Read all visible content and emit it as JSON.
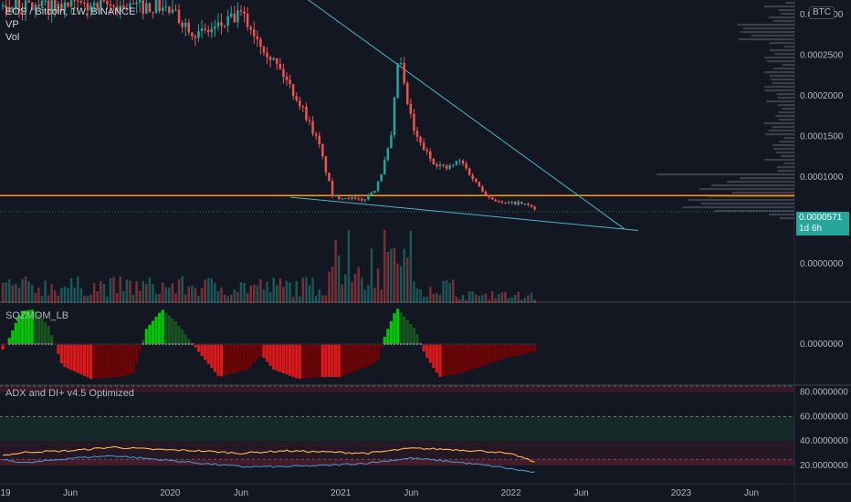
{
  "header": {
    "symbol_title": "EOS / Bitcoin, 1W, BINANCE",
    "indicator_vp": "VP",
    "indicator_vol": "Vol",
    "currency_badge": "BTC"
  },
  "price_tag": {
    "value": "0.0000571",
    "countdown": "1d 6h"
  },
  "panes": {
    "momentum_label": "SQZMOM_LB",
    "adx_label": "ADX and DI+ v4.5 Optimized"
  },
  "colors": {
    "background": "#131722",
    "candle_up": "#26a69a",
    "candle_down": "#ef5350",
    "support_line": "#ff9800",
    "trendline": "#4fb3c9",
    "momentum_bright_green": "#00e600",
    "momentum_dark_green": "#1b5e20",
    "momentum_bright_red": "#ff1a1a",
    "momentum_dark_red": "#7f0000",
    "adx_line": "#ffb74d",
    "di_line": "#4a90c8"
  },
  "chart_data": [
    {
      "type": "candlestick",
      "title": "EOS / Bitcoin, 1W, BINANCE",
      "y_axis_ticks": [
        "0.0003000",
        "0.0002500",
        "0.0002000",
        "0.0001500",
        "0.0001000"
      ],
      "x_axis_ticks": [
        "19",
        "Jun",
        "2020",
        "Jun",
        "2021",
        "Jun",
        "2022",
        "Jun",
        "2023",
        "Jun"
      ],
      "x_range": [
        "2019-01-01",
        "2023-09-01"
      ],
      "ylim": [
        4.8e-05,
        0.000318
      ],
      "close_points": [
        [
          "2019-12-15",
          0.00031
        ],
        [
          "2020-02-01",
          0.00029
        ],
        [
          "2020-03-01",
          0.000275
        ],
        [
          "2020-04-15",
          0.000285
        ],
        [
          "2020-06-01",
          0.0003
        ],
        [
          "2020-07-15",
          0.000265
        ],
        [
          "2020-09-01",
          0.000225
        ],
        [
          "2020-10-15",
          0.00018
        ],
        [
          "2020-11-15",
          0.00014
        ],
        [
          "2020-12-15",
          7.5e-05
        ],
        [
          "2021-01-15",
          7.5e-05
        ],
        [
          "2021-02-15",
          7e-05
        ],
        [
          "2021-03-15",
          8.5e-05
        ],
        [
          "2021-04-01",
          0.00011
        ],
        [
          "2021-04-20",
          0.00015
        ],
        [
          "2021-05-05",
          0.000255
        ],
        [
          "2021-05-20",
          0.0002
        ],
        [
          "2021-06-10",
          0.00015
        ],
        [
          "2021-07-15",
          0.00012
        ],
        [
          "2021-08-15",
          0.00011
        ],
        [
          "2021-09-15",
          0.00012
        ],
        [
          "2021-10-15",
          9.5e-05
        ],
        [
          "2021-11-15",
          7.5e-05
        ],
        [
          "2021-12-15",
          6.7e-05
        ],
        [
          "2022-01-15",
          6.8e-05
        ],
        [
          "2022-02-15",
          6.4e-05
        ],
        [
          "2022-02-25",
          5.71e-05
        ]
      ],
      "support_level": 7.7e-05,
      "trendlines": [
        {
          "from": [
            "2020-08-20",
            0.000345
          ],
          "to": [
            "2022-09-01",
            3.6e-05
          ]
        },
        {
          "from": [
            "2020-09-15",
            7.5e-05
          ],
          "to": [
            "2022-10-01",
            3.4e-05
          ]
        }
      ],
      "last_price": 5.71e-05
    },
    {
      "type": "bar",
      "title": "Vol",
      "y_axis_ticks": [
        "0.0000000"
      ],
      "x_range": [
        "2019-01-01",
        "2023-09-01"
      ],
      "high_volume_points": [
        [
          "2021-01-01",
          0.9
        ],
        [
          "2021-01-15",
          0.75
        ],
        [
          "2021-02-15",
          0.95
        ],
        [
          "2021-05-10",
          1.0
        ],
        [
          "2021-04-20",
          0.8
        ]
      ]
    },
    {
      "type": "bar",
      "title": "SQZMOM_LB",
      "y_axis_ticks": [
        "0.0000000"
      ],
      "x_range": [
        "2019-01-01",
        "2023-09-01"
      ],
      "momentum_points": [
        [
          "2019-01-10",
          -0.15
        ],
        [
          "2019-02-15",
          0.9
        ],
        [
          "2019-03-15",
          0.95
        ],
        [
          "2019-04-15",
          0.5
        ],
        [
          "2019-05-15",
          -0.6
        ],
        [
          "2019-07-15",
          -0.95
        ],
        [
          "2019-09-15",
          -0.9
        ],
        [
          "2019-10-15",
          -0.8
        ],
        [
          "2019-11-10",
          0.4
        ],
        [
          "2019-12-15",
          0.95
        ],
        [
          "2020-01-15",
          0.6
        ],
        [
          "2020-03-01",
          -0.2
        ],
        [
          "2020-04-15",
          -0.9
        ],
        [
          "2020-06-15",
          -0.7
        ],
        [
          "2020-07-15",
          -0.3
        ],
        [
          "2020-08-10",
          -0.7
        ],
        [
          "2020-10-01",
          -0.95
        ],
        [
          "2020-11-15",
          -0.9
        ],
        [
          "2021-01-01",
          -0.9
        ],
        [
          "2021-03-20",
          -0.5
        ],
        [
          "2021-04-05",
          0.2
        ],
        [
          "2021-05-01",
          1.0
        ],
        [
          "2021-06-10",
          0.4
        ],
        [
          "2021-07-01",
          -0.3
        ],
        [
          "2021-08-01",
          -0.9
        ],
        [
          "2021-09-15",
          -0.8
        ],
        [
          "2021-11-01",
          -0.6
        ],
        [
          "2021-12-15",
          -0.4
        ],
        [
          "2022-02-25",
          -0.2
        ]
      ]
    },
    {
      "type": "line",
      "title": "ADX and DI+ v4.5 Optimized",
      "y_axis_ticks": [
        "80.0000000",
        "60.0000000",
        "40.0000000",
        "20.0000000"
      ],
      "x_range": [
        "2019-01-01",
        "2023-09-01"
      ],
      "ylim": [
        5,
        85
      ],
      "series": [
        {
          "name": "",
          "points": [
            [
              "2019-01-01",
              28
            ],
            [
              "2019-03-01",
              31
            ],
            [
              "2019-06-01",
              32
            ],
            [
              "2019-09-01",
              35
            ],
            [
              "2019-12-01",
              33
            ],
            [
              "2020-03-01",
              32
            ],
            [
              "2020-06-01",
              30
            ],
            [
              "2020-09-01",
              32
            ],
            [
              "2020-12-01",
              31
            ],
            [
              "2021-03-01",
              30
            ],
            [
              "2021-06-01",
              34
            ],
            [
              "2021-09-01",
              33
            ],
            [
              "2021-12-01",
              31
            ],
            [
              "2022-01-15",
              28
            ],
            [
              "2022-02-25",
              22
            ]
          ]
        },
        {
          "name": "",
          "points": [
            [
              "2019-01-01",
              25
            ],
            [
              "2019-03-01",
              22
            ],
            [
              "2019-06-01",
              26
            ],
            [
              "2019-09-01",
              28
            ],
            [
              "2019-12-01",
              25
            ],
            [
              "2020-03-01",
              22
            ],
            [
              "2020-06-01",
              19
            ],
            [
              "2020-09-01",
              19
            ],
            [
              "2020-12-01",
              20
            ],
            [
              "2021-03-01",
              22
            ],
            [
              "2021-06-01",
              26
            ],
            [
              "2021-09-01",
              23
            ],
            [
              "2021-12-01",
              19
            ],
            [
              "2022-02-25",
              14
            ]
          ]
        }
      ],
      "bands": [
        [
          20,
          25
        ],
        [
          40,
          60
        ],
        [
          80,
          85
        ]
      ]
    }
  ]
}
